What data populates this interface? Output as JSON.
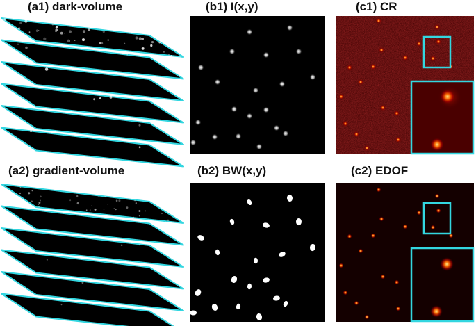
{
  "titles": {
    "a1": "(a1) dark-volume",
    "b1": "(b1) I(x,y)",
    "c1": "(c1) CR",
    "a2": "(a2) gradient-volume",
    "b2": "(b2) BW(x,y)",
    "c2": "(c2) EDOF"
  },
  "colors": {
    "background": "#ffffff",
    "frame": "#33d6e0",
    "panel_black": "#000000",
    "cr_background": "#3a0000",
    "edof_background": "#1a0000",
    "spot_gray": "#ffffff",
    "spot_hot": "#ffcc33"
  }
}
